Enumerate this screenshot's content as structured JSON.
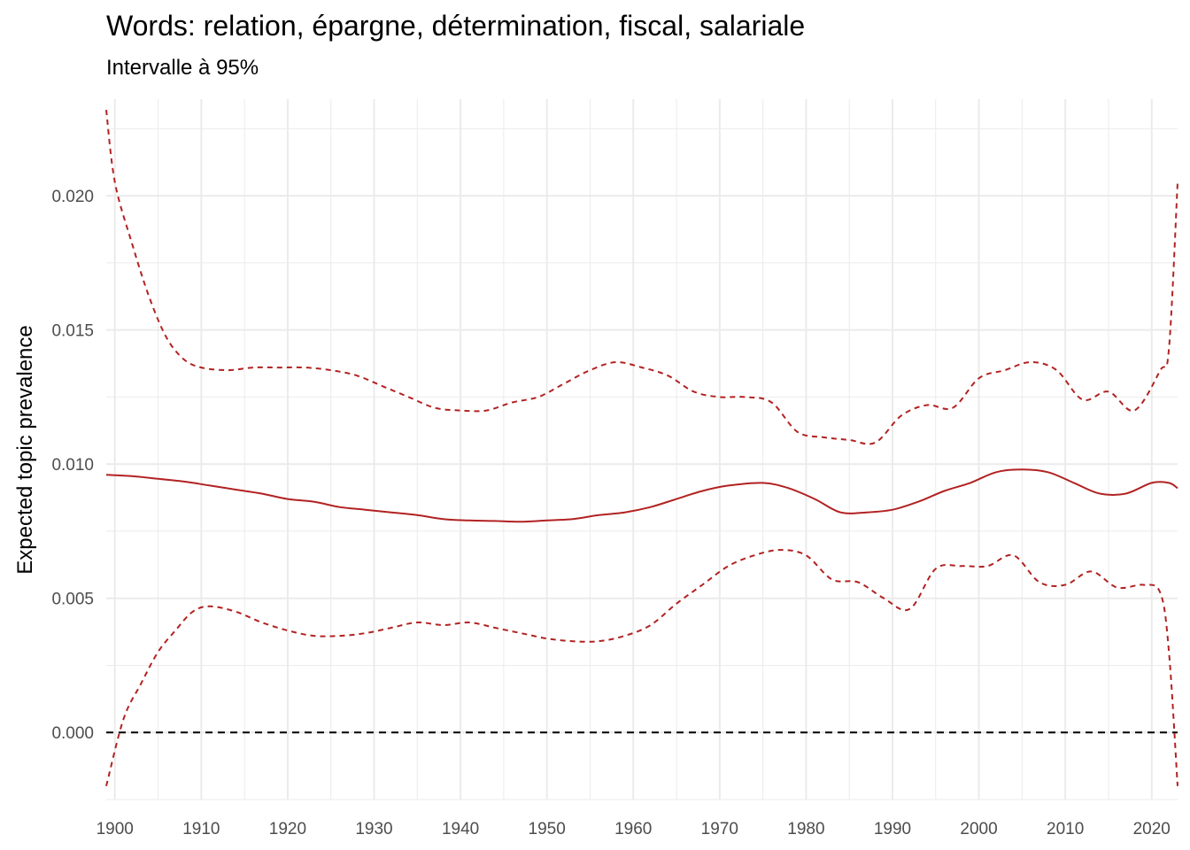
{
  "chart_data": {
    "type": "line",
    "title": "Words: relation, épargne, détermination, fiscal, salariale",
    "subtitle": "Intervalle à 95%",
    "xlabel": "",
    "ylabel": "Expected topic prevalence",
    "xlim": [
      1899,
      2023
    ],
    "ylim": [
      -0.0025,
      0.0236
    ],
    "x_ticks": [
      1900,
      1910,
      1920,
      1930,
      1940,
      1950,
      1960,
      1970,
      1980,
      1990,
      2000,
      2010,
      2020
    ],
    "x_tick_labels": [
      "1900",
      "1910",
      "1920",
      "1930",
      "1940",
      "1950",
      "1960",
      "1970",
      "1980",
      "1990",
      "2000",
      "2010",
      "2020"
    ],
    "y_ticks": [
      0.0,
      0.005,
      0.01,
      0.015,
      0.02
    ],
    "y_tick_labels": [
      "0.000",
      "0.005",
      "0.010",
      "0.015",
      "0.020"
    ],
    "grid": true,
    "colors": {
      "series": "#b22222",
      "reference": "#000000",
      "grid": "#ebebeb"
    },
    "reference_line": {
      "y": 0.0,
      "style": "dashed"
    },
    "series": [
      {
        "style": "solid",
        "x": [
          1899,
          1902,
          1905,
          1908,
          1911,
          1914,
          1917,
          1920,
          1923,
          1926,
          1929,
          1932,
          1935,
          1938,
          1941,
          1944,
          1947,
          1950,
          1953,
          1956,
          1959,
          1962,
          1965,
          1968,
          1971,
          1975,
          1978,
          1981,
          1984,
          1987,
          1990,
          1993,
          1996,
          1999,
          2002,
          2005,
          2008,
          2011,
          2014,
          2017,
          2020,
          2022,
          2023
        ],
        "values": [
          0.0096,
          0.00955,
          0.00945,
          0.00935,
          0.0092,
          0.00905,
          0.0089,
          0.0087,
          0.0086,
          0.0084,
          0.0083,
          0.0082,
          0.0081,
          0.00795,
          0.0079,
          0.00788,
          0.00785,
          0.0079,
          0.00795,
          0.0081,
          0.0082,
          0.0084,
          0.0087,
          0.009,
          0.0092,
          0.0093,
          0.0091,
          0.0087,
          0.0082,
          0.0082,
          0.0083,
          0.0086,
          0.009,
          0.0093,
          0.0097,
          0.0098,
          0.0097,
          0.0093,
          0.0089,
          0.0089,
          0.0093,
          0.0093,
          0.0091
        ]
      },
      {
        "style": "dashed",
        "x": [
          1899,
          1900,
          1902,
          1904,
          1906,
          1908,
          1910,
          1913,
          1916,
          1919,
          1922,
          1925,
          1928,
          1931,
          1934,
          1937,
          1940,
          1943,
          1946,
          1949,
          1952,
          1955,
          1958,
          1961,
          1964,
          1967,
          1970,
          1973,
          1976,
          1979,
          1982,
          1985,
          1988,
          1991,
          1994,
          1997,
          2000,
          2003,
          2006,
          2009,
          2012,
          2015,
          2018,
          2021,
          2022,
          2023
        ],
        "values": [
          0.0232,
          0.0205,
          0.0182,
          0.0162,
          0.0147,
          0.0139,
          0.0136,
          0.0135,
          0.0136,
          0.0136,
          0.0136,
          0.0135,
          0.0133,
          0.0129,
          0.0125,
          0.0121,
          0.012,
          0.012,
          0.0123,
          0.0125,
          0.013,
          0.0135,
          0.0138,
          0.0136,
          0.0133,
          0.0127,
          0.0125,
          0.0125,
          0.0123,
          0.0112,
          0.011,
          0.0109,
          0.0108,
          0.0118,
          0.0122,
          0.0121,
          0.0132,
          0.0135,
          0.0138,
          0.0135,
          0.0124,
          0.0127,
          0.012,
          0.0135,
          0.0143,
          0.0205
        ]
      },
      {
        "style": "dashed",
        "x": [
          1899,
          1901,
          1903,
          1905,
          1907,
          1909,
          1911,
          1914,
          1917,
          1920,
          1923,
          1926,
          1929,
          1932,
          1935,
          1938,
          1941,
          1944,
          1947,
          1950,
          1953,
          1956,
          1959,
          1962,
          1965,
          1968,
          1971,
          1974,
          1977,
          1980,
          1983,
          1986,
          1989,
          1992,
          1995,
          1998,
          2001,
          2004,
          2007,
          2010,
          2013,
          2016,
          2019,
          2021,
          2022,
          2023
        ],
        "values": [
          -0.002,
          0.0005,
          0.0018,
          0.003,
          0.0038,
          0.0045,
          0.0047,
          0.0045,
          0.0041,
          0.0038,
          0.0036,
          0.0036,
          0.0037,
          0.0039,
          0.0041,
          0.004,
          0.0041,
          0.0039,
          0.0037,
          0.0035,
          0.0034,
          0.0034,
          0.0036,
          0.004,
          0.0048,
          0.0055,
          0.0062,
          0.0066,
          0.0068,
          0.0066,
          0.0057,
          0.0056,
          0.005,
          0.0046,
          0.0061,
          0.0062,
          0.0062,
          0.0066,
          0.0056,
          0.0055,
          0.006,
          0.0054,
          0.0055,
          0.0052,
          0.003,
          -0.002
        ]
      }
    ]
  }
}
